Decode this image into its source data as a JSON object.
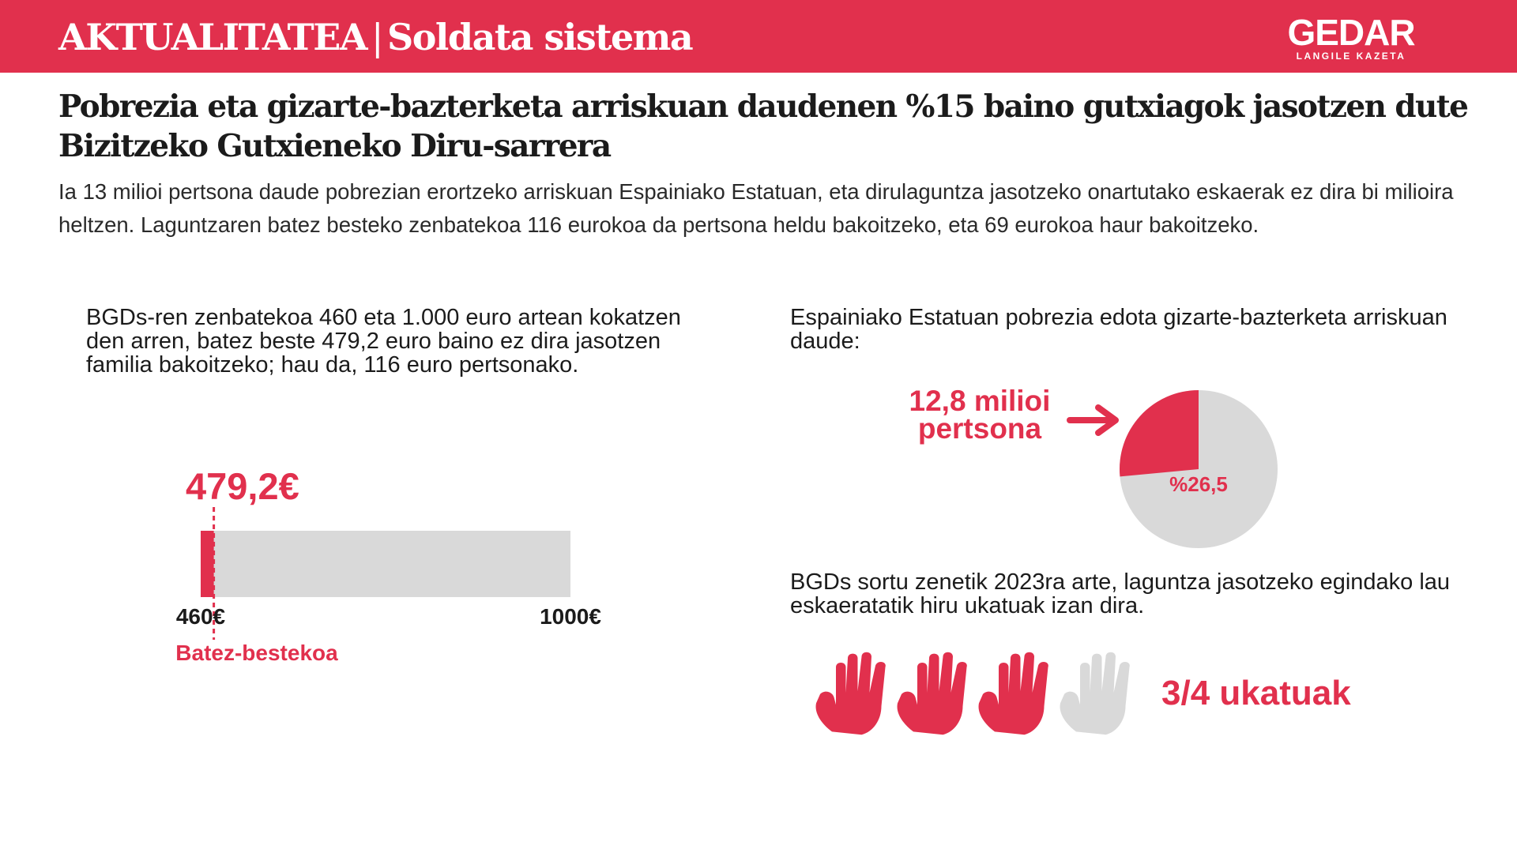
{
  "header": {
    "section": "AKTUALITATEA",
    "separator": "|",
    "topic": "Soldata sistema",
    "brand": "GEDAR",
    "brand_tagline": "LANGILE KAZETA"
  },
  "headline": "Pobrezia eta gizarte-bazterketa arriskuan daudenen %15 baino gutxiagok jasotzen dute Bizitzeko Gutxieneko Diru-sarrera",
  "lede": "Ia 13 milioi pertsona daude pobrezian erortzeko arriskuan Espainiako Estatuan, eta dirulaguntza jasotzeko onartutako eskaerak ez dira bi milioira heltzen. Laguntzaren batez besteko zenbatekoa 116 eurokoa da pertsona heldu bakoitzeko, eta 69 eurokoa haur bakoitzeko.",
  "left_note": "BGDs-ren zenbatekoa 460 eta 1.000 euro artean kokatzen den arren, batez beste 479,2 euro baino ez dira jasotzen familia bakoitzeko; hau da, 116 euro pertsonako.",
  "right_note_poverty": "Espainiako Estatuan pobrezia edota gizarte-bazterketa arriskuan daude:",
  "right_note_requests": "BGDs sortu zenetik 2023ra arte, laguntza jasotzeko egindako lau eskaeratatik hiru ukatuak izan dira.",
  "colors": {
    "accent": "#e1304d",
    "neutral": "#d9d9d9",
    "text": "#1b1b1b"
  },
  "chart_data": [
    {
      "type": "bar",
      "orientation": "horizontal",
      "min": 460,
      "max": 1000,
      "value": 479.2,
      "value_label": "479,2€",
      "min_label": "460€",
      "max_label": "1000€",
      "marker_label": "Batez-bestekoa"
    },
    {
      "type": "pie",
      "slices": [
        {
          "value": 26.5,
          "label": "%26,5",
          "color": "#e1304d"
        },
        {
          "value": 73.5,
          "color": "#d9d9d9"
        }
      ],
      "callout": [
        "12,8 milioi",
        "pertsona"
      ]
    },
    {
      "type": "pictogram",
      "icon": "hand-icon",
      "total": 4,
      "highlighted": 3,
      "label": "3/4 ukatuak"
    }
  ]
}
